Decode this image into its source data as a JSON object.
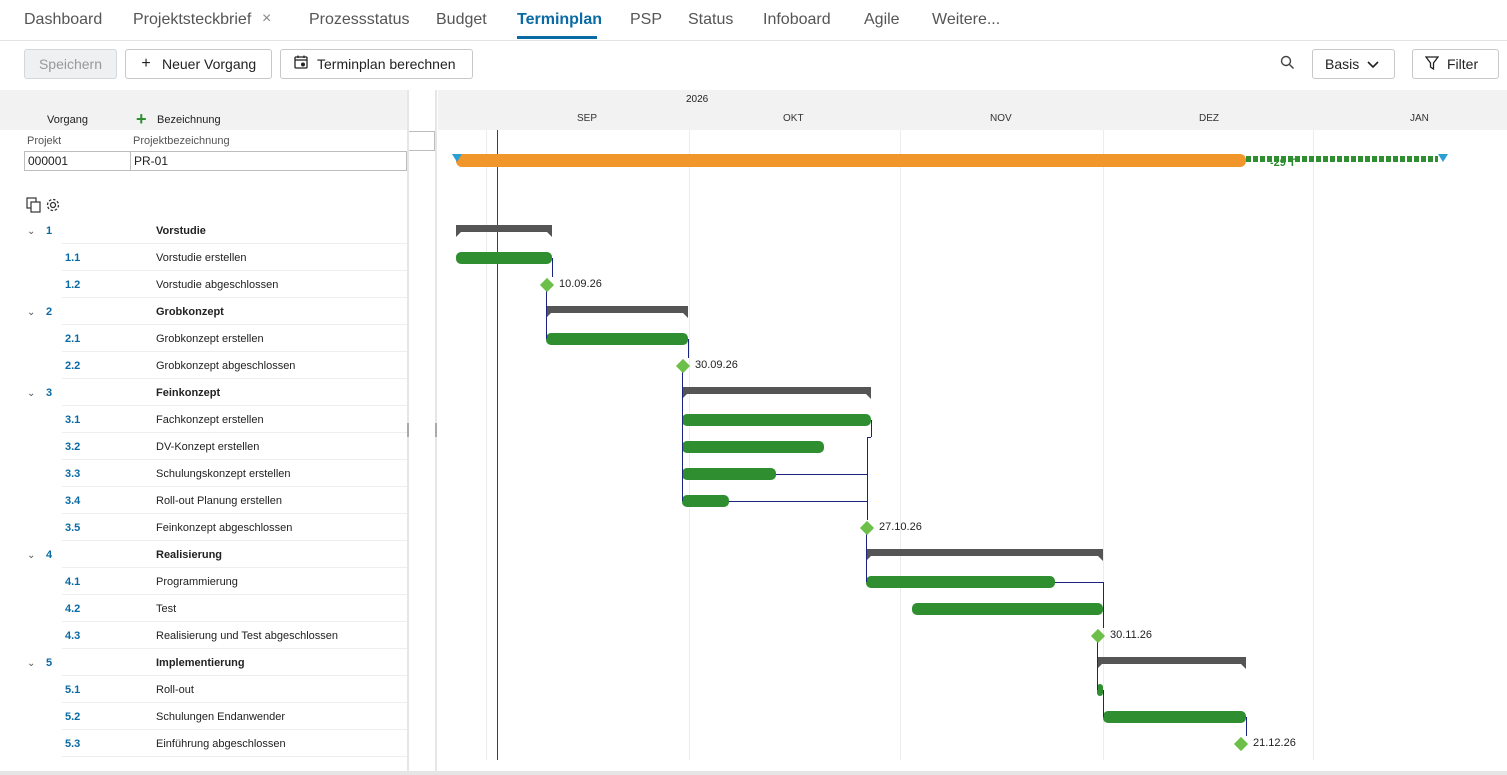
{
  "tabs": [
    "Dashboard",
    "Projektsteckbrief",
    "Prozessstatus",
    "Budget",
    "Terminplan",
    "PSP",
    "Status",
    "Infoboard",
    "Agile",
    "Weitere..."
  ],
  "active_tab": "Terminplan",
  "toolbar": {
    "save": "Speichern",
    "new_task": "Neuer Vorgang",
    "calculate": "Terminplan berechnen",
    "baseline": "Basis",
    "filter": "Filter"
  },
  "grid": {
    "col_task": "Vorgang",
    "col_name": "Bezeichnung",
    "project_label": "Projekt",
    "project_name_label": "Projektbezeichnung",
    "project_id": "000001",
    "project_name": "PR-01"
  },
  "timeline": {
    "year": "2026",
    "months": [
      "SEP",
      "OKT",
      "NOV",
      "DEZ",
      "JAN"
    ],
    "project_bar_label": "-29 T"
  },
  "rows": [
    {
      "num": "1",
      "name": "Vorstudie",
      "summary": true
    },
    {
      "num": "1.1",
      "name": "Vorstudie erstellen"
    },
    {
      "num": "1.2",
      "name": "Vorstudie abgeschlossen",
      "milestone": "10.09.26"
    },
    {
      "num": "2",
      "name": "Grobkonzept",
      "summary": true
    },
    {
      "num": "2.1",
      "name": "Grobkonzept erstellen"
    },
    {
      "num": "2.2",
      "name": "Grobkonzept abgeschlossen",
      "milestone": "30.09.26"
    },
    {
      "num": "3",
      "name": "Feinkonzept",
      "summary": true
    },
    {
      "num": "3.1",
      "name": "Fachkonzept erstellen"
    },
    {
      "num": "3.2",
      "name": "DV-Konzept erstellen"
    },
    {
      "num": "3.3",
      "name": "Schulungskonzept erstellen"
    },
    {
      "num": "3.4",
      "name": "Roll-out Planung erstellen"
    },
    {
      "num": "3.5",
      "name": "Feinkonzept abgeschlossen",
      "milestone": "27.10.26"
    },
    {
      "num": "4",
      "name": "Realisierung",
      "summary": true
    },
    {
      "num": "4.1",
      "name": "Programmierung"
    },
    {
      "num": "4.2",
      "name": "Test"
    },
    {
      "num": "4.3",
      "name": "Realisierung und Test abgeschlossen",
      "milestone": "30.11.26"
    },
    {
      "num": "5",
      "name": "Implementierung",
      "summary": true
    },
    {
      "num": "5.1",
      "name": "Roll-out"
    },
    {
      "num": "5.2",
      "name": "Schulungen Endanwender"
    },
    {
      "num": "5.3",
      "name": "Einführung abgeschlossen",
      "milestone": "21.12.26"
    }
  ],
  "colors": {
    "accent": "#0a6aa3",
    "task": "#2f8e2f",
    "project": "#f0962a",
    "milestone": "#6cc04a",
    "today": "#a01818"
  }
}
